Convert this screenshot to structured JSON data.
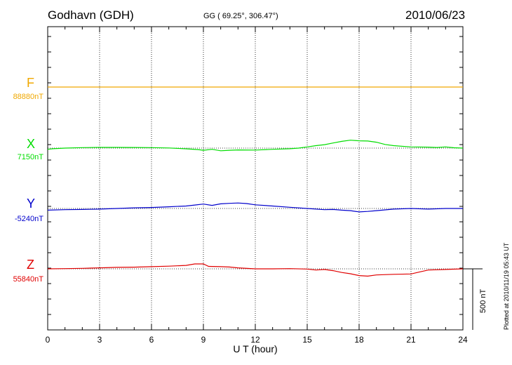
{
  "header": {
    "station": "Godhavn (GDH)",
    "coords": "GG ( 69.25°, 306.47°)",
    "date": "2010/06/23"
  },
  "footer": {
    "plotted": "Plotted at 2010/11/19 05:43 UT"
  },
  "chart_data": {
    "type": "line",
    "xlabel": "U T (hour)",
    "xlim": [
      0,
      24
    ],
    "xticks": [
      0,
      3,
      6,
      9,
      12,
      15,
      18,
      21,
      24
    ],
    "scale_bar_label": "500 nT",
    "grid": "dotted",
    "series": [
      {
        "name": "F",
        "baseline": "88880nT",
        "color": "#f0a800",
        "x": [
          0,
          2,
          4,
          6,
          8,
          10,
          12,
          14,
          16,
          18,
          20,
          22,
          24
        ],
        "y": [
          0,
          0,
          0,
          0,
          0,
          0,
          0,
          0,
          0,
          0,
          0,
          0,
          0
        ]
      },
      {
        "name": "X",
        "baseline": "7150nT",
        "color": "#00dd00",
        "x": [
          0,
          0.3,
          1,
          2,
          3,
          4,
          5,
          6,
          7,
          8,
          8.7,
          9,
          9.5,
          10,
          10.5,
          11,
          12,
          13,
          14,
          14.5,
          15,
          15.5,
          16,
          16.5,
          17,
          17.5,
          18,
          18.5,
          19,
          19.5,
          20,
          21,
          22,
          22.5,
          23,
          23.5,
          24
        ],
        "y": [
          -10,
          -5,
          0,
          4,
          6,
          6,
          5,
          4,
          1,
          -6,
          -12,
          -18,
          -10,
          -22,
          -18,
          -15,
          -16,
          -10,
          -5,
          0,
          10,
          20,
          28,
          42,
          55,
          65,
          60,
          58,
          48,
          30,
          20,
          10,
          8,
          5,
          10,
          3,
          0
        ]
      },
      {
        "name": "Y",
        "baseline": "-5240nT",
        "color": "#0000cc",
        "x": [
          0,
          1,
          2,
          3,
          4,
          5,
          6,
          7,
          8,
          8.5,
          9,
          9.5,
          10,
          10.5,
          11,
          11.5,
          12,
          13,
          14,
          15,
          16,
          16.5,
          17,
          17.5,
          18,
          18.5,
          19,
          20,
          21,
          22,
          23,
          24
        ],
        "y": [
          -14,
          -10,
          -8,
          -5,
          0,
          5,
          8,
          14,
          20,
          28,
          36,
          25,
          38,
          42,
          45,
          40,
          30,
          20,
          10,
          0,
          -10,
          -8,
          -14,
          -18,
          -28,
          -24,
          -18,
          -5,
          0,
          -5,
          0,
          0
        ]
      },
      {
        "name": "Z",
        "baseline": "55840nT",
        "color": "#e00000",
        "x": [
          0,
          1,
          2,
          3,
          4,
          5,
          6,
          7,
          8,
          8.5,
          9,
          9.3,
          10,
          10.5,
          11,
          12,
          13,
          14,
          15,
          15.5,
          16,
          16.5,
          17,
          17.5,
          18,
          18.5,
          19,
          20,
          21,
          21.5,
          22,
          23,
          24
        ],
        "y": [
          0,
          2,
          4,
          8,
          12,
          14,
          18,
          22,
          28,
          40,
          40,
          20,
          18,
          15,
          8,
          0,
          0,
          2,
          -2,
          -10,
          -5,
          -15,
          -30,
          -40,
          -55,
          -60,
          -50,
          -45,
          -42,
          -25,
          -10,
          -5,
          0
        ]
      }
    ]
  }
}
